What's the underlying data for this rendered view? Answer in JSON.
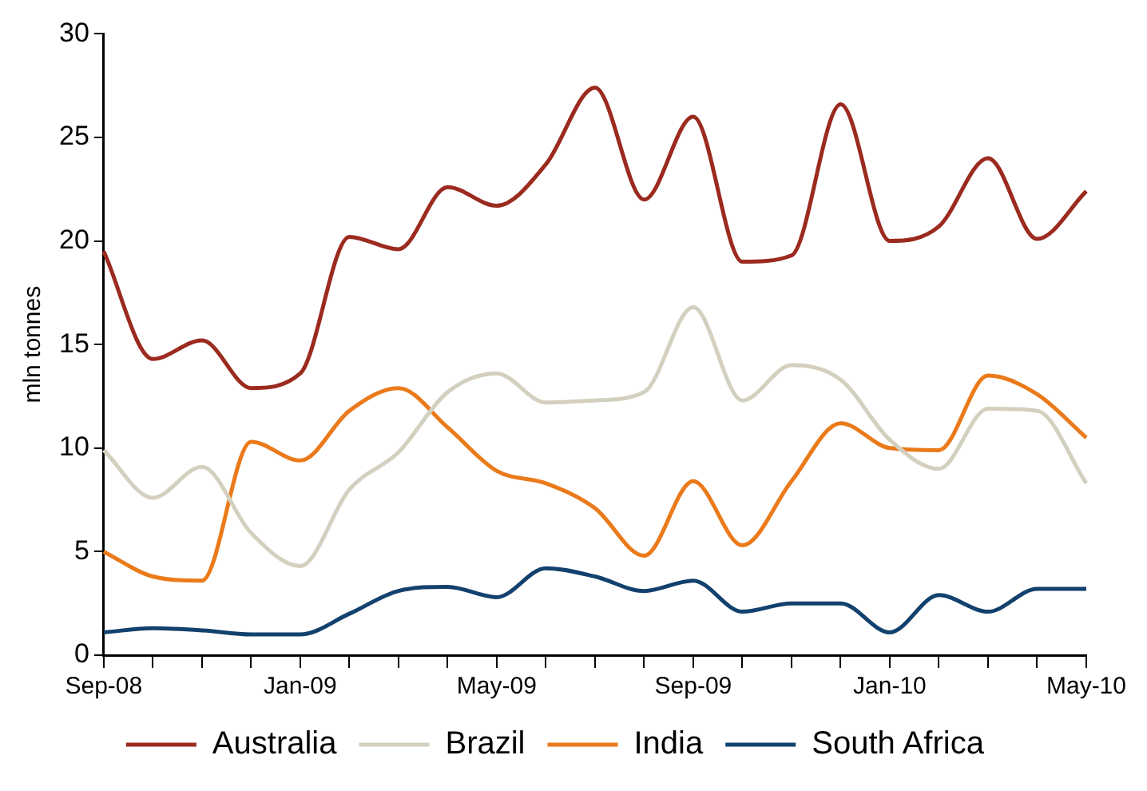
{
  "chart_data": {
    "type": "line",
    "ylabel": "mln tonnes",
    "categories": [
      "Sep-08",
      null,
      null,
      null,
      "Jan-09",
      null,
      null,
      null,
      "May-09",
      null,
      null,
      null,
      "Sep-09",
      null,
      null,
      null,
      "Jan-10",
      null,
      null,
      null,
      "May-10"
    ],
    "series": [
      {
        "name": "Australia",
        "color": "#9b2a1f",
        "values": [
          19.5,
          14.3,
          15.2,
          12.9,
          13.6,
          20.2,
          19.6,
          22.6,
          21.7,
          23.7,
          27.4,
          22.0,
          26.0,
          19.0,
          19.3,
          26.6,
          20.0,
          20.7,
          24.0,
          20.1,
          22.4
        ]
      },
      {
        "name": "Brazil",
        "color": "#d3d0bf",
        "values": [
          9.9,
          7.6,
          9.1,
          5.9,
          4.3,
          8.0,
          9.8,
          12.7,
          13.6,
          12.2,
          12.3,
          12.7,
          16.8,
          12.3,
          14.0,
          13.3,
          10.4,
          9.0,
          11.9,
          11.8,
          8.3
        ]
      },
      {
        "name": "India",
        "color": "#ea7a1a",
        "values": [
          5.0,
          3.8,
          3.6,
          10.3,
          9.4,
          11.8,
          12.9,
          11.0,
          8.9,
          8.3,
          7.1,
          4.8,
          8.4,
          5.3,
          8.4,
          11.2,
          10.0,
          9.9,
          13.5,
          12.6,
          10.5
        ]
      },
      {
        "name": "South Africa",
        "color": "#12416e",
        "values": [
          1.1,
          1.3,
          1.2,
          1.0,
          1.0,
          2.0,
          3.1,
          3.3,
          2.8,
          4.2,
          3.8,
          3.1,
          3.6,
          2.1,
          2.5,
          2.5,
          1.1,
          2.9,
          2.1,
          3.2,
          3.2
        ]
      }
    ],
    "ylim": [
      0,
      30
    ],
    "yticks": [
      0,
      5,
      10,
      15,
      20,
      25,
      30
    ],
    "grid": false,
    "legend": "bottom",
    "marker": "none",
    "line_style": "solid"
  }
}
